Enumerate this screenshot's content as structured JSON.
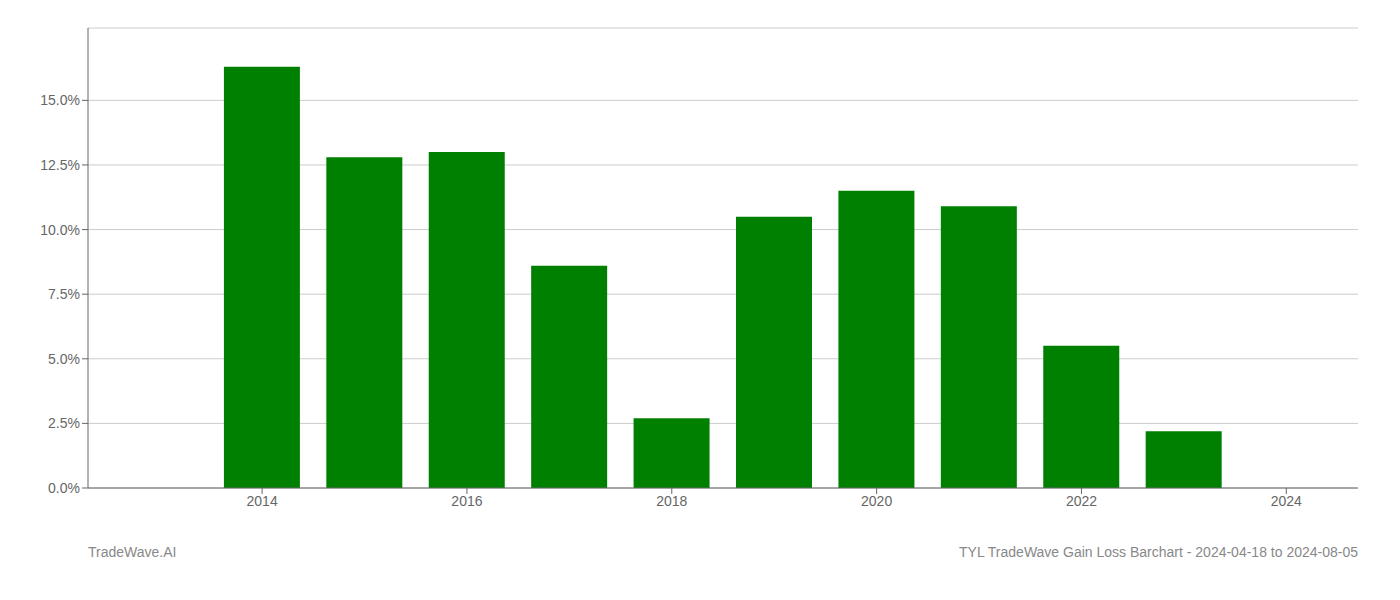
{
  "chart_data": {
    "type": "bar",
    "x": [
      2013,
      2014,
      2015,
      2016,
      2017,
      2018,
      2019,
      2020,
      2021,
      2022,
      2023
    ],
    "values": [
      0.0,
      0.163,
      0.128,
      0.13,
      0.086,
      0.027,
      0.105,
      0.115,
      0.109,
      0.055,
      0.022
    ],
    "color": "#008000",
    "xlim": [
      2012.3,
      2024.7
    ],
    "xticks": [
      2014,
      2016,
      2018,
      2020,
      2022,
      2024
    ],
    "ylim": [
      0,
      0.178
    ],
    "yticks": [
      {
        "value": 0.0,
        "label": "0.0%"
      },
      {
        "value": 0.025,
        "label": "2.5%"
      },
      {
        "value": 0.05,
        "label": "5.0%"
      },
      {
        "value": 0.075,
        "label": "7.5%"
      },
      {
        "value": 0.1,
        "label": "10.0%"
      },
      {
        "value": 0.125,
        "label": "12.5%"
      },
      {
        "value": 0.15,
        "label": "15.0%"
      }
    ],
    "grid": true,
    "annotations": [
      "TradeWave.AI",
      "TYL TradeWave Gain Loss Barchart - 2024-04-18 to 2024-08-05"
    ]
  }
}
